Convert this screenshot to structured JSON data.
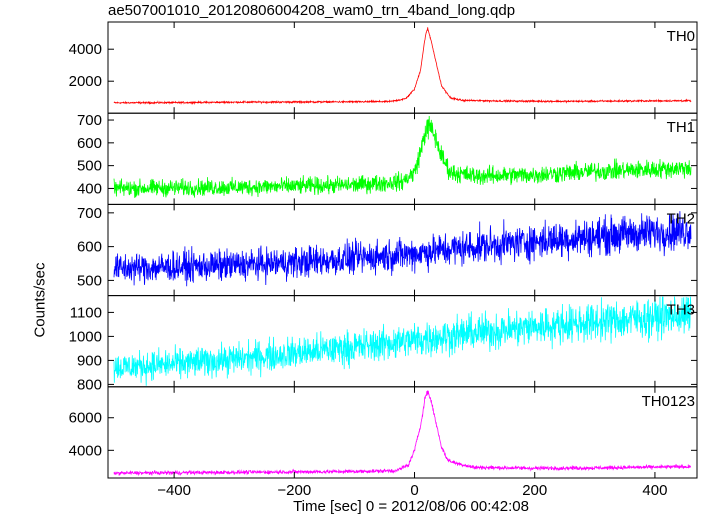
{
  "chart_data": {
    "type": "line",
    "title": "ae507001010_20120806004208_wam0_trn_4band_long.qdp",
    "xlabel": "Time [sec] 0 = 2012/08/06 00:42:08",
    "ylabel": "Counts/sec",
    "xlim": [
      -510,
      470
    ],
    "x_ticks": [
      -400,
      -200,
      0,
      200,
      400
    ],
    "x_tick_labels": [
      "−400",
      "−200",
      "0",
      "200",
      "400"
    ],
    "grid": false,
    "panels": [
      {
        "name": "TH0",
        "color": "#ff0000",
        "ylim": [
          0,
          5700
        ],
        "yticks": [
          2000,
          4000
        ],
        "ytick_labels": [
          "2000",
          "4000"
        ],
        "points": [
          [
            -500,
            650
          ],
          [
            -400,
            660
          ],
          [
            -300,
            690
          ],
          [
            -200,
            700
          ],
          [
            -100,
            710
          ],
          [
            -40,
            730
          ],
          [
            -15,
            900
          ],
          [
            0,
            1500
          ],
          [
            10,
            2700
          ],
          [
            18,
            4800
          ],
          [
            22,
            5300
          ],
          [
            28,
            4500
          ],
          [
            35,
            3300
          ],
          [
            45,
            1700
          ],
          [
            60,
            950
          ],
          [
            80,
            800
          ],
          [
            150,
            760
          ],
          [
            250,
            740
          ],
          [
            350,
            760
          ],
          [
            460,
            780
          ]
        ],
        "noise": 25
      },
      {
        "name": "TH1",
        "color": "#00ff00",
        "ylim": [
          330,
          730
        ],
        "yticks": [
          400,
          500,
          600,
          700
        ],
        "ytick_labels": [
          "400",
          "500",
          "600",
          "700"
        ],
        "points": [
          [
            -500,
            400
          ],
          [
            -300,
            405
          ],
          [
            -100,
            415
          ],
          [
            -20,
            430
          ],
          [
            0,
            470
          ],
          [
            10,
            560
          ],
          [
            18,
            650
          ],
          [
            25,
            675
          ],
          [
            35,
            620
          ],
          [
            45,
            540
          ],
          [
            60,
            470
          ],
          [
            100,
            455
          ],
          [
            200,
            460
          ],
          [
            300,
            475
          ],
          [
            460,
            490
          ]
        ],
        "noise": 18
      },
      {
        "name": "TH2",
        "color": "#0000ff",
        "ylim": [
          455,
          725
        ],
        "yticks": [
          500,
          600,
          700
        ],
        "ytick_labels": [
          "500",
          "600",
          "700"
        ],
        "points": [
          [
            -500,
            535
          ],
          [
            -300,
            545
          ],
          [
            -200,
            553
          ],
          [
            -100,
            565
          ],
          [
            0,
            580
          ],
          [
            100,
            600
          ],
          [
            200,
            615
          ],
          [
            300,
            630
          ],
          [
            400,
            642
          ],
          [
            460,
            648
          ]
        ],
        "noise": 22
      },
      {
        "name": "TH3",
        "color": "#00ffff",
        "ylim": [
          790,
          1170
        ],
        "yticks": [
          800,
          900,
          1000,
          1100
        ],
        "ytick_labels": [
          "800",
          "900",
          "1000",
          "1100"
        ],
        "points": [
          [
            -500,
            870
          ],
          [
            -400,
            885
          ],
          [
            -300,
            905
          ],
          [
            -200,
            930
          ],
          [
            -100,
            955
          ],
          [
            0,
            985
          ],
          [
            100,
            1015
          ],
          [
            200,
            1040
          ],
          [
            300,
            1060
          ],
          [
            400,
            1080
          ],
          [
            460,
            1090
          ]
        ],
        "noise": 30
      },
      {
        "name": "TH0123",
        "color": "#ff00ff",
        "ylim": [
          2300,
          7900
        ],
        "yticks": [
          4000,
          6000
        ],
        "ytick_labels": [
          "4000",
          "6000"
        ],
        "points": [
          [
            -500,
            2600
          ],
          [
            -300,
            2650
          ],
          [
            -100,
            2700
          ],
          [
            -30,
            2750
          ],
          [
            -10,
            3100
          ],
          [
            0,
            4000
          ],
          [
            10,
            5500
          ],
          [
            18,
            7300
          ],
          [
            22,
            7600
          ],
          [
            28,
            7000
          ],
          [
            35,
            5800
          ],
          [
            45,
            4200
          ],
          [
            55,
            3400
          ],
          [
            70,
            3200
          ],
          [
            100,
            2950
          ],
          [
            200,
            2900
          ],
          [
            300,
            2920
          ],
          [
            460,
            3000
          ]
        ],
        "noise": 55
      }
    ]
  }
}
